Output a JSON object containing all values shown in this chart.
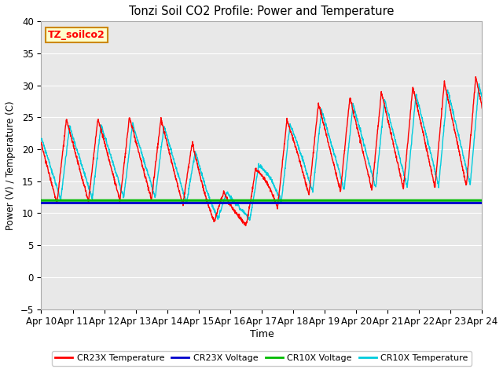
{
  "title": "Tonzi Soil CO2 Profile: Power and Temperature",
  "xlabel": "Time",
  "ylabel": "Power (V) / Temperature (C)",
  "ylim": [
    -5,
    40
  ],
  "yticks": [
    -5,
    0,
    5,
    10,
    15,
    20,
    25,
    30,
    35,
    40
  ],
  "xtick_labels": [
    "Apr 10",
    "Apr 11",
    "Apr 12",
    "Apr 13",
    "Apr 14",
    "Apr 15",
    "Apr 16",
    "Apr 17",
    "Apr 18",
    "Apr 19",
    "Apr 20",
    "Apr 21",
    "Apr 22",
    "Apr 23",
    "Apr 24"
  ],
  "cr23x_voltage_value": 11.6,
  "cr10x_voltage_value": 12.0,
  "colors": {
    "cr23x_temp": "#FF0000",
    "cr23x_voltage": "#0000CC",
    "cr10x_voltage": "#00BB00",
    "cr10x_temp": "#00CCDD",
    "fig_bg": "#FFFFFF",
    "plot_bg": "#E8E8E8",
    "label_box_face": "#FFFFCC",
    "label_box_edge": "#CC8800",
    "grid": "#FFFFFF"
  },
  "legend_labels": [
    "CR23X Temperature",
    "CR23X Voltage",
    "CR10X Voltage",
    "CR10X Temperature"
  ],
  "annotation": "TZ_soilco2"
}
